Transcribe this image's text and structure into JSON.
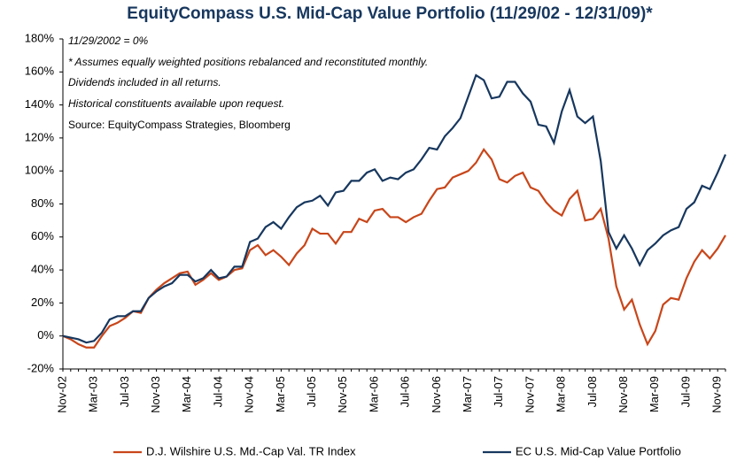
{
  "chart_data": {
    "type": "line",
    "title": "EquityCompass U.S. Mid-Cap Value Portfolio (11/29/02 - 12/31/09)*",
    "annotations": [
      "11/29/2002 = 0%",
      "*  Assumes equally weighted positions rebalanced and reconstituted monthly.",
      "Dividends included in all returns.",
      "Historical constituents available upon request.",
      "Source: EquityCompass Strategies, Bloomberg"
    ],
    "categories": [
      "Nov-02",
      null,
      null,
      null,
      "Mar-03",
      null,
      null,
      null,
      "Jul-03",
      null,
      null,
      null,
      "Nov-03",
      null,
      null,
      null,
      "Mar-04",
      null,
      null,
      null,
      "Jul-04",
      null,
      null,
      null,
      "Nov-04",
      null,
      null,
      null,
      "Mar-05",
      null,
      null,
      null,
      "Jul-05",
      null,
      null,
      null,
      "Nov-05",
      null,
      null,
      null,
      "Mar-06",
      null,
      null,
      null,
      "Jul-06",
      null,
      null,
      null,
      "Nov-06",
      null,
      null,
      null,
      "Mar-07",
      null,
      null,
      null,
      "Jul-07",
      null,
      null,
      null,
      "Nov-07",
      null,
      null,
      null,
      "Mar-08",
      null,
      null,
      null,
      "Jul-08",
      null,
      null,
      null,
      "Nov-08",
      null,
      null,
      null,
      "Mar-09",
      null,
      null,
      null,
      "Jul-09",
      null,
      null,
      null,
      "Nov-09",
      null
    ],
    "series": [
      {
        "name": "D.J. Wilshire U.S. Md.-Cap Val. TR Index",
        "color": "#c8461a",
        "values": [
          0,
          -2,
          -5,
          -7,
          -7,
          0,
          6,
          8,
          11,
          15,
          14,
          23,
          28,
          32,
          35,
          38,
          39,
          31,
          34,
          38,
          34,
          36,
          40,
          41,
          52,
          55,
          49,
          52,
          48,
          43,
          50,
          55,
          65,
          62,
          62,
          56,
          63,
          63,
          71,
          69,
          76,
          77,
          72,
          72,
          69,
          72,
          74,
          82,
          89,
          90,
          96,
          98,
          100,
          105,
          113,
          107,
          95,
          93,
          97,
          99,
          90,
          88,
          81,
          76,
          73,
          83,
          88,
          70,
          71,
          77,
          59,
          30,
          16,
          22,
          7,
          -5,
          3,
          19,
          23,
          22,
          35,
          45,
          52,
          47,
          53,
          61
        ]
      },
      {
        "name": "EC U.S. Mid-Cap Value Portfolio",
        "color": "#17375e",
        "values": [
          0,
          -1,
          -2,
          -4,
          -3,
          2,
          10,
          12,
          12,
          15,
          15,
          23,
          27,
          30,
          32,
          37,
          37,
          33,
          35,
          40,
          35,
          36,
          42,
          42,
          57,
          59,
          66,
          69,
          65,
          72,
          78,
          81,
          82,
          85,
          79,
          87,
          88,
          94,
          94,
          99,
          101,
          94,
          96,
          95,
          99,
          101,
          107,
          114,
          113,
          121,
          126,
          132,
          145,
          158,
          155,
          144,
          145,
          154,
          154,
          147,
          142,
          128,
          127,
          117,
          136,
          149,
          133,
          129,
          133,
          106,
          63,
          53,
          61,
          53,
          43,
          52,
          56,
          61,
          64,
          66,
          77,
          81,
          91,
          89,
          99,
          110
        ]
      }
    ],
    "ylim": [
      -20,
      180
    ],
    "yticks": [
      {
        "value": -20,
        "label": "-20%"
      },
      {
        "value": 0,
        "label": "0%"
      },
      {
        "value": 20,
        "label": "20%"
      },
      {
        "value": 40,
        "label": "40%"
      },
      {
        "value": 60,
        "label": "60%"
      },
      {
        "value": 80,
        "label": "80%"
      },
      {
        "value": 100,
        "label": "100%"
      },
      {
        "value": 120,
        "label": "120%"
      },
      {
        "value": 140,
        "label": "140%"
      },
      {
        "value": 160,
        "label": "160%"
      },
      {
        "value": 180,
        "label": "180%"
      }
    ]
  }
}
